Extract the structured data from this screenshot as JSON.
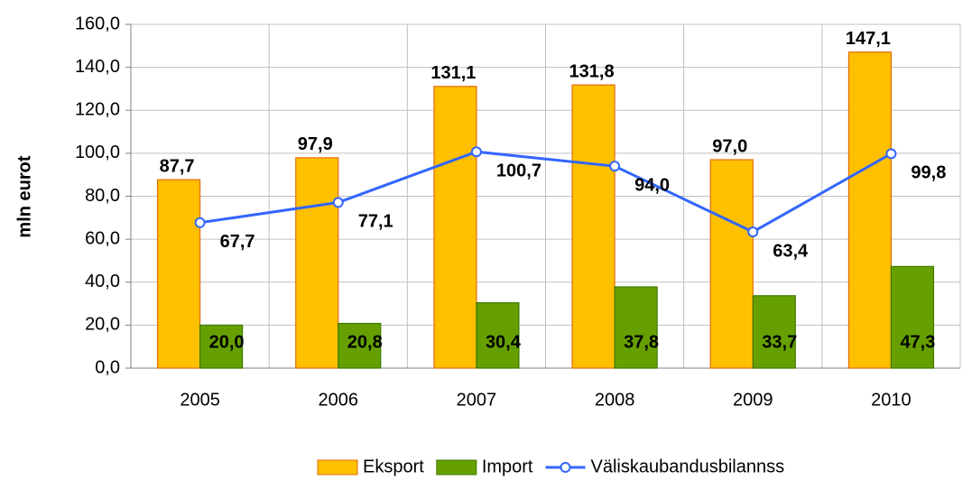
{
  "chart_data": {
    "type": "bar",
    "y_label": "mln eurot",
    "categories": [
      "2005",
      "2006",
      "2007",
      "2008",
      "2009",
      "2010"
    ],
    "series": [
      {
        "name": "Eksport",
        "color": "#ffc000",
        "values": [
          87.7,
          97.9,
          131.1,
          131.8,
          97.0,
          147.1
        ],
        "value_labels": [
          "87,7",
          "97,9",
          "131,1",
          "131,8",
          "97,0",
          "147,1"
        ]
      },
      {
        "name": "Import",
        "color": "#66a000",
        "values": [
          20.0,
          20.8,
          30.4,
          37.8,
          33.7,
          47.3
        ],
        "value_labels": [
          "20,0",
          "20,8",
          "30,4",
          "37,8",
          "33,7",
          "47,3"
        ]
      },
      {
        "name": "Väliskaubandusbilannss",
        "type": "line",
        "color": "#3366ff",
        "values": [
          67.7,
          77.1,
          100.7,
          94.0,
          63.4,
          99.8
        ],
        "value_labels": [
          "67,7",
          "77,1",
          "100,7",
          "94,0",
          "63,4",
          "99,8"
        ]
      }
    ],
    "ylim": [
      0,
      160
    ],
    "yticks": [
      {
        "value": 0,
        "label": "0,0"
      },
      {
        "value": 20,
        "label": "20,0"
      },
      {
        "value": 40,
        "label": "40,0"
      },
      {
        "value": 60,
        "label": "60,0"
      },
      {
        "value": 80,
        "label": "80,0"
      },
      {
        "value": 100,
        "label": "100,0"
      },
      {
        "value": 120,
        "label": "120,0"
      },
      {
        "value": 140,
        "label": "140,0"
      },
      {
        "value": 160,
        "label": "160,0"
      }
    ],
    "grid": true,
    "legend": "bottom"
  }
}
